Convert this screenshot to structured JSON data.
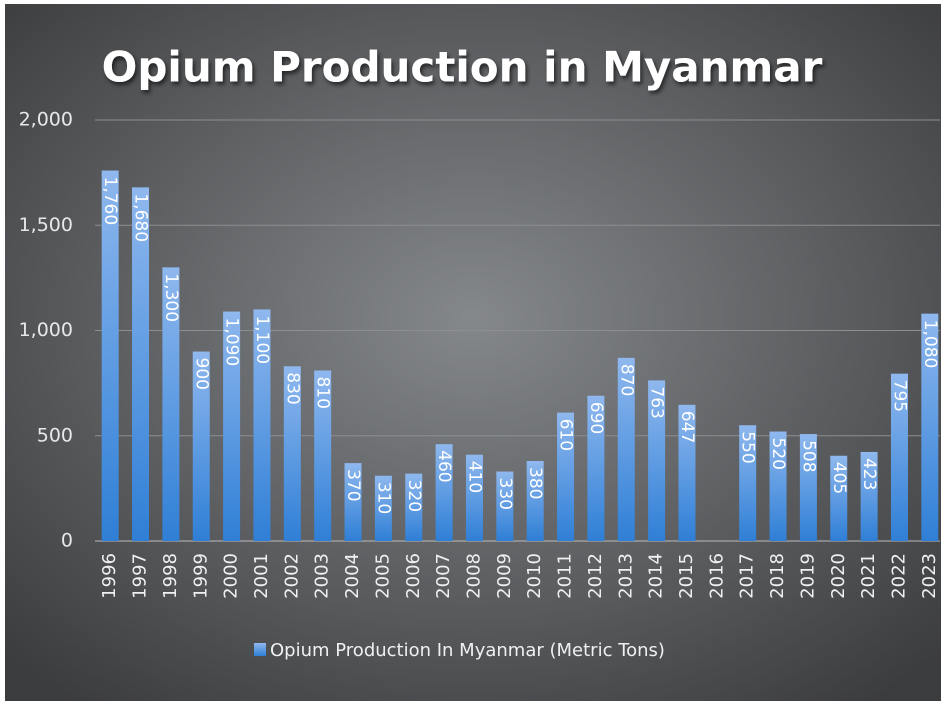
{
  "chart_data": {
    "type": "bar",
    "title": "Opium Production in Myanmar",
    "categories": [
      "1996",
      "1997",
      "1998",
      "1999",
      "2000",
      "2001",
      "2002",
      "2003",
      "2004",
      "2005",
      "2006",
      "2007",
      "2008",
      "2009",
      "2010",
      "2011",
      "2012",
      "2013",
      "2014",
      "2015",
      "2016",
      "2017",
      "2018",
      "2019",
      "2020",
      "2021",
      "2022",
      "2023"
    ],
    "series": [
      {
        "name": "Opium Production In Myanmar (Metric Tons)",
        "color": "#2f7fd6",
        "values": [
          1760,
          1680,
          1300,
          900,
          1090,
          1100,
          830,
          810,
          370,
          310,
          320,
          460,
          410,
          330,
          380,
          610,
          690,
          870,
          763,
          647,
          null,
          550,
          520,
          508,
          405,
          423,
          795,
          1080
        ],
        "value_labels": [
          "1,760",
          "1,680",
          "1,300",
          "900",
          "1,090",
          "1,100",
          "830",
          "810",
          "370",
          "310",
          "320",
          "460",
          "410",
          "330",
          "380",
          "610",
          "690",
          "870",
          "763",
          "647",
          null,
          "550",
          "520",
          "508",
          "405",
          "423",
          "795",
          "1,080"
        ]
      }
    ],
    "ylim": [
      0,
      2000
    ],
    "yticks": [
      0,
      500,
      {
        "value": 1000,
        "label": "1,000"
      },
      {
        "value": 1500,
        "label": "1,500"
      },
      {
        "value": 2000,
        "label": "2,000"
      }
    ],
    "grid": true
  }
}
